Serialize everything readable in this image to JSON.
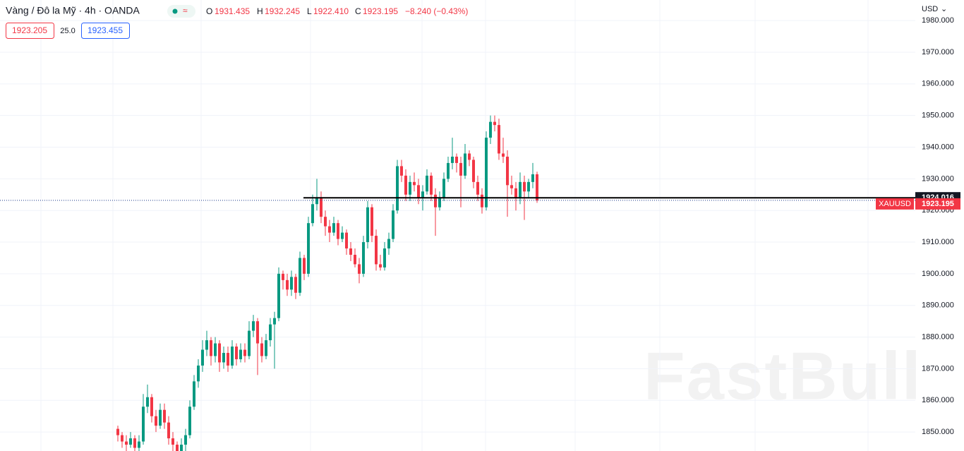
{
  "chart_data": {
    "type": "candlestick",
    "header": {
      "symbol": "Vàng / Đô la Mỹ · 4h · OANDA",
      "o_label": "O",
      "o": "1931.435",
      "h_label": "H",
      "h": "1932.245",
      "l_label": "L",
      "l": "1922.410",
      "c_label": "C",
      "c": "1923.195",
      "change": "−8.240 (−0.43%)",
      "sell": "1923.205",
      "spread": "25.0",
      "buy": "1923.455",
      "currency": "USD"
    },
    "symbol_tag": "XAUUSD",
    "hline": 1924.016,
    "last_price": 1923.195,
    "watermark": "FastBull",
    "up_color": "#089981",
    "down_color": "#f23645",
    "ylim": [
      1844,
      1986.5
    ],
    "yticks": [
      {
        "value": 1850,
        "label": "1850.000"
      },
      {
        "value": 1860,
        "label": "1860.000"
      },
      {
        "value": 1870,
        "label": "1870.000"
      },
      {
        "value": 1880,
        "label": "1880.000"
      },
      {
        "value": 1890,
        "label": "1890.000"
      },
      {
        "value": 1900,
        "label": "1900.000"
      },
      {
        "value": 1910,
        "label": "1910.000"
      },
      {
        "value": 1920,
        "label": "1920.000"
      },
      {
        "value": 1930,
        "label": "1930.000"
      },
      {
        "value": 1940,
        "label": "1940.000"
      },
      {
        "value": 1950,
        "label": "1950.000"
      },
      {
        "value": 1960,
        "label": "1960.000"
      },
      {
        "value": 1970,
        "label": "1970.000"
      },
      {
        "value": 1980,
        "label": "1980.000"
      }
    ],
    "grid": true,
    "ohlc": [
      [
        1851,
        1852,
        1847,
        1849
      ],
      [
        1849,
        1850,
        1845,
        1847
      ],
      [
        1847,
        1849,
        1844,
        1846
      ],
      [
        1846,
        1850,
        1845,
        1848
      ],
      [
        1848,
        1849,
        1843,
        1845
      ],
      [
        1845,
        1849,
        1844,
        1847
      ],
      [
        1847,
        1862,
        1846,
        1858
      ],
      [
        1858,
        1865,
        1856,
        1861
      ],
      [
        1861,
        1862,
        1853,
        1855
      ],
      [
        1855,
        1857,
        1850,
        1852
      ],
      [
        1852,
        1859,
        1851,
        1857
      ],
      [
        1857,
        1859,
        1851,
        1853
      ],
      [
        1853,
        1855,
        1846,
        1848
      ],
      [
        1848,
        1850,
        1844,
        1846
      ],
      [
        1846,
        1847,
        1842,
        1844
      ],
      [
        1844,
        1848,
        1843,
        1846
      ],
      [
        1846,
        1851,
        1844,
        1849
      ],
      [
        1849,
        1860,
        1848,
        1858
      ],
      [
        1858,
        1868,
        1857,
        1866
      ],
      [
        1866,
        1873,
        1864,
        1871
      ],
      [
        1871,
        1879,
        1869,
        1876
      ],
      [
        1876,
        1882,
        1874,
        1879
      ],
      [
        1879,
        1880,
        1871,
        1874
      ],
      [
        1874,
        1880,
        1872,
        1878
      ],
      [
        1878,
        1879,
        1869,
        1872
      ],
      [
        1872,
        1877,
        1870,
        1875
      ],
      [
        1875,
        1877,
        1869,
        1871
      ],
      [
        1871,
        1879,
        1870,
        1877
      ],
      [
        1877,
        1878,
        1871,
        1873
      ],
      [
        1873,
        1878,
        1872,
        1876
      ],
      [
        1876,
        1878,
        1872,
        1874
      ],
      [
        1874,
        1885,
        1873,
        1882
      ],
      [
        1882,
        1887,
        1880,
        1885
      ],
      [
        1885,
        1886,
        1868,
        1878
      ],
      [
        1878,
        1880,
        1872,
        1874
      ],
      [
        1874,
        1881,
        1873,
        1879
      ],
      [
        1879,
        1886,
        1877,
        1884
      ],
      [
        1884,
        1888,
        1870,
        1886
      ],
      [
        1886,
        1902,
        1885,
        1900
      ],
      [
        1900,
        1901,
        1895,
        1898
      ],
      [
        1898,
        1900,
        1893,
        1895
      ],
      [
        1895,
        1901,
        1893,
        1899
      ],
      [
        1899,
        1900,
        1892,
        1894
      ],
      [
        1894,
        1907,
        1893,
        1905
      ],
      [
        1905,
        1906,
        1898,
        1900
      ],
      [
        1900,
        1918,
        1899,
        1916
      ],
      [
        1916,
        1925,
        1915,
        1922
      ],
      [
        1922,
        1930,
        1920,
        1924
      ],
      [
        1924,
        1926,
        1916,
        1918
      ],
      [
        1918,
        1920,
        1912,
        1915
      ],
      [
        1915,
        1917,
        1910,
        1913
      ],
      [
        1913,
        1918,
        1912,
        1916
      ],
      [
        1916,
        1917,
        1909,
        1911
      ],
      [
        1911,
        1915,
        1910,
        1913
      ],
      [
        1913,
        1914,
        1906,
        1908
      ],
      [
        1908,
        1910,
        1904,
        1906
      ],
      [
        1906,
        1908,
        1902,
        1903
      ],
      [
        1903,
        1905,
        1897,
        1900
      ],
      [
        1900,
        1912,
        1899,
        1910
      ],
      [
        1910,
        1923,
        1908,
        1921
      ],
      [
        1921,
        1922,
        1910,
        1912
      ],
      [
        1912,
        1914,
        1901,
        1903
      ],
      [
        1903,
        1906,
        1901,
        1902
      ],
      [
        1902,
        1910,
        1901,
        1908
      ],
      [
        1908,
        1913,
        1906,
        1911
      ],
      [
        1911,
        1922,
        1910,
        1920
      ],
      [
        1920,
        1936,
        1919,
        1934
      ],
      [
        1934,
        1936,
        1929,
        1931
      ],
      [
        1931,
        1933,
        1923,
        1925
      ],
      [
        1925,
        1931,
        1923,
        1929
      ],
      [
        1929,
        1932,
        1926,
        1928
      ],
      [
        1928,
        1930,
        1922,
        1924
      ],
      [
        1924,
        1928,
        1920,
        1926
      ],
      [
        1926,
        1933,
        1925,
        1931
      ],
      [
        1931,
        1932,
        1923,
        1925
      ],
      [
        1925,
        1927,
        1912,
        1921
      ],
      [
        1921,
        1926,
        1920,
        1924
      ],
      [
        1924,
        1932,
        1923,
        1930
      ],
      [
        1930,
        1937,
        1929,
        1935
      ],
      [
        1935,
        1943,
        1933,
        1937
      ],
      [
        1937,
        1938,
        1932,
        1935
      ],
      [
        1935,
        1937,
        1921,
        1931
      ],
      [
        1931,
        1941,
        1930,
        1938
      ],
      [
        1938,
        1939,
        1934,
        1936
      ],
      [
        1936,
        1937,
        1927,
        1929
      ],
      [
        1929,
        1931,
        1923,
        1925
      ],
      [
        1925,
        1927,
        1919,
        1921
      ],
      [
        1921,
        1945,
        1920,
        1943
      ],
      [
        1943,
        1950,
        1941,
        1948
      ],
      [
        1948,
        1950,
        1945,
        1947
      ],
      [
        1947,
        1949,
        1936,
        1938
      ],
      [
        1938,
        1943,
        1935,
        1937
      ],
      [
        1937,
        1939,
        1918,
        1928
      ],
      [
        1928,
        1931,
        1925,
        1927
      ],
      [
        1927,
        1929,
        1920,
        1924
      ],
      [
        1924,
        1932,
        1922,
        1929
      ],
      [
        1929,
        1931,
        1917,
        1926
      ],
      [
        1926,
        1930,
        1924,
        1929
      ],
      [
        1929,
        1935,
        1927,
        1931.435
      ],
      [
        1931.435,
        1932.245,
        1922.41,
        1923.195
      ]
    ]
  }
}
